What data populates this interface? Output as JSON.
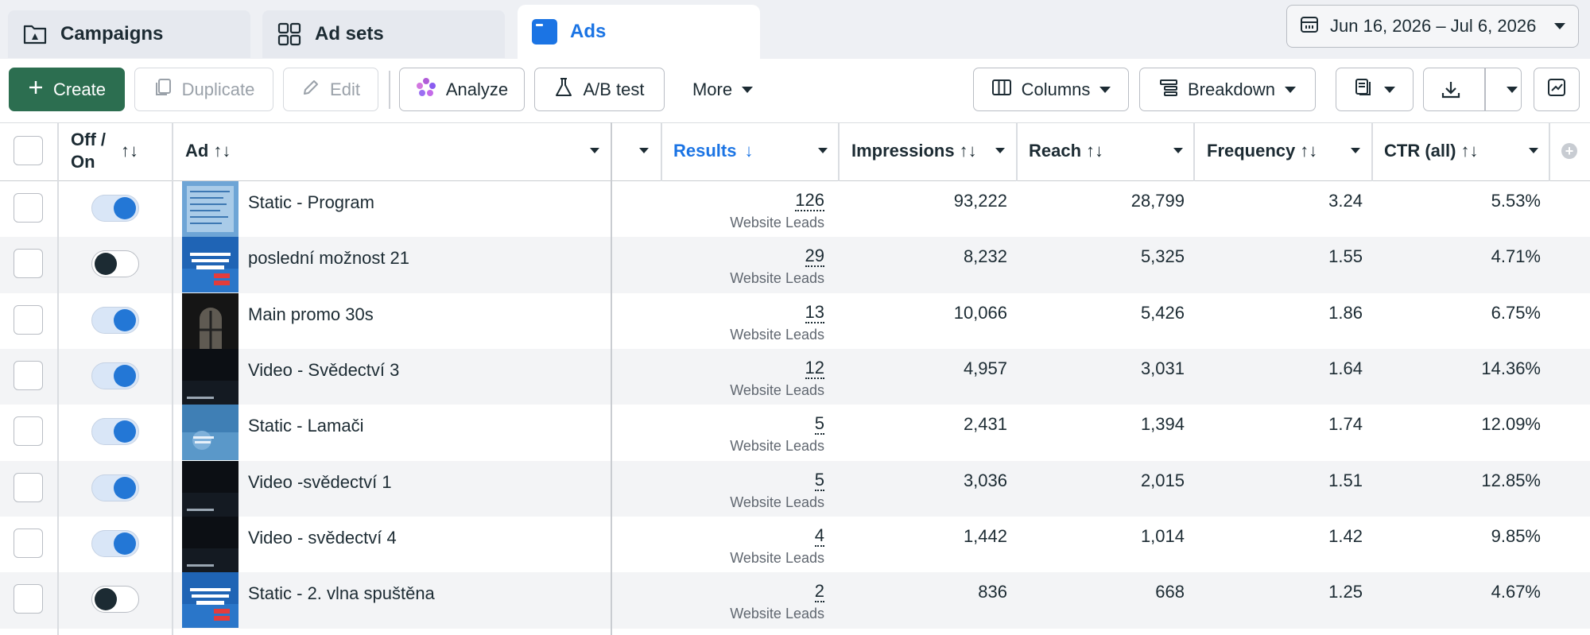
{
  "tabs": [
    {
      "label": "Campaigns",
      "icon": "campaign-folder-icon"
    },
    {
      "label": "Ad sets",
      "icon": "grid-icon"
    },
    {
      "label": "Ads",
      "icon": "ad-window-icon"
    }
  ],
  "date_range": "Jun 16, 2026 – Jul 6, 2026",
  "toolbar": {
    "create": "Create",
    "duplicate": "Duplicate",
    "edit": "Edit",
    "analyze": "Analyze",
    "ab_test": "A/B test",
    "more": "More",
    "columns": "Columns",
    "breakdown": "Breakdown"
  },
  "columns": {
    "off_on": "Off / On",
    "ad": "Ad",
    "results": "Results",
    "impressions": "Impressions",
    "reach": "Reach",
    "frequency": "Frequency",
    "ctr": "CTR (all)"
  },
  "colors": {
    "accent": "#1b74e4",
    "create": "#2c6e50",
    "toggle_on": "#2377d6"
  },
  "rows": [
    {
      "on": true,
      "thumb": "blue-doc",
      "name": "Static - Program",
      "results": "126",
      "result_type": "Website Leads",
      "impressions": "93,222",
      "reach": "28,799",
      "frequency": "3.24",
      "ctr": "5.53%"
    },
    {
      "on": false,
      "thumb": "blue-promo",
      "name": "poslední možnost 21",
      "results": "29",
      "result_type": "Website Leads",
      "impressions": "8,232",
      "reach": "5,325",
      "frequency": "1.55",
      "ctr": "4.71%"
    },
    {
      "on": true,
      "thumb": "window",
      "name": "Main promo 30s",
      "results": "13",
      "result_type": "Website Leads",
      "impressions": "10,066",
      "reach": "5,426",
      "frequency": "1.86",
      "ctr": "6.75%"
    },
    {
      "on": true,
      "thumb": "dark",
      "name": "Video - Svědectví 3",
      "results": "12",
      "result_type": "Website Leads",
      "impressions": "4,957",
      "reach": "3,031",
      "frequency": "1.64",
      "ctr": "14.36%"
    },
    {
      "on": true,
      "thumb": "blue-light",
      "name": "Static - Lamači",
      "results": "5",
      "result_type": "Website Leads",
      "impressions": "2,431",
      "reach": "1,394",
      "frequency": "1.74",
      "ctr": "12.09%"
    },
    {
      "on": true,
      "thumb": "dark",
      "name": "Video -svědectví 1",
      "results": "5",
      "result_type": "Website Leads",
      "impressions": "3,036",
      "reach": "2,015",
      "frequency": "1.51",
      "ctr": "12.85%"
    },
    {
      "on": true,
      "thumb": "dark",
      "name": "Video - svědectví 4",
      "results": "4",
      "result_type": "Website Leads",
      "impressions": "1,442",
      "reach": "1,014",
      "frequency": "1.42",
      "ctr": "9.85%"
    },
    {
      "on": false,
      "thumb": "blue-promo",
      "name": "Static - 2. vlna spuštěna",
      "results": "2",
      "result_type": "Website Leads",
      "impressions": "836",
      "reach": "668",
      "frequency": "1.25",
      "ctr": "4.67%"
    }
  ]
}
